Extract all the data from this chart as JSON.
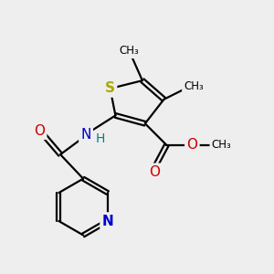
{
  "bg_color": "#eeeeee",
  "atom_colors": {
    "S": "#aaaa00",
    "N_blue": "#0000cc",
    "N_teal": "#008080",
    "O": "#cc0000",
    "C": "#000000"
  },
  "bond_color": "#000000",
  "bond_width": 1.6,
  "dbo": 0.08,
  "figsize": [
    3.0,
    3.0
  ],
  "dpi": 100,
  "xlim": [
    0,
    10
  ],
  "ylim": [
    0,
    10
  ]
}
